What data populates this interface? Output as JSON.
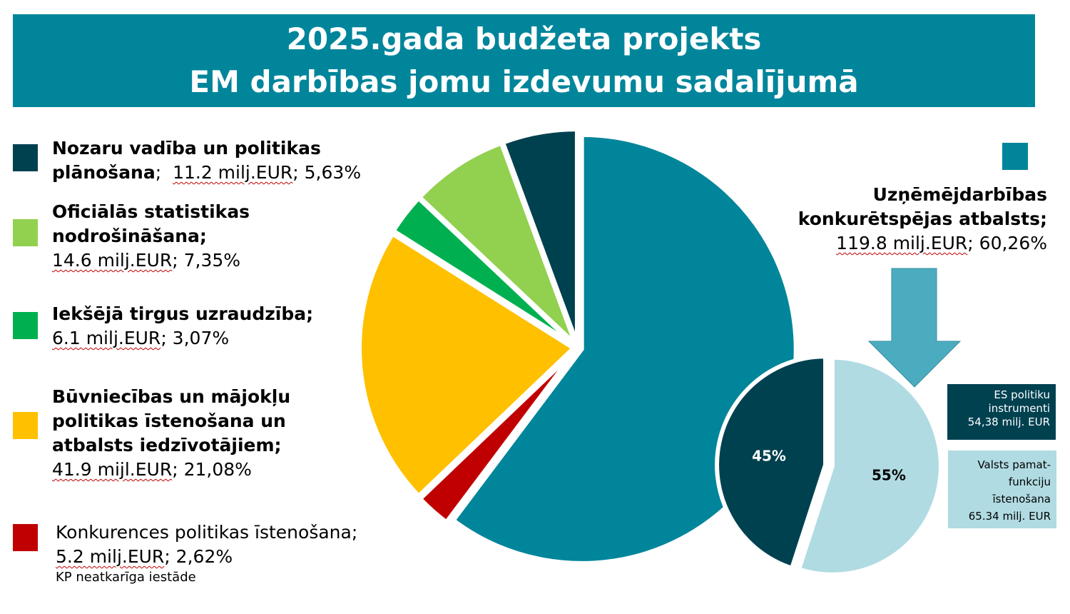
{
  "title": {
    "line1": "2025.gada budžeta projekts",
    "line2": "EM darbības jomu izdevumu sadalījumā"
  },
  "colors": {
    "banner": "#00859b",
    "nozaru": "#004150",
    "statistika": "#92d050",
    "tirgus": "#00b050",
    "buvnieciba": "#ffc000",
    "konkurence": "#c00000",
    "uznemejdarbiba": "#00859b",
    "es_instrumenti": "#004150",
    "valsts_funkcijas": "#b0dbe2",
    "arrow": "#4bacc0"
  },
  "legend": {
    "nozaru": {
      "title_a": "Nozaru vadība un politikas",
      "title_b": "plānošana",
      "sep": ";  ",
      "amount": "11.2 milj.EUR",
      "pct": "; 5,63%"
    },
    "statistika": {
      "title_a": "Oficiālās statistikas",
      "title_b": "nodrošināšana;",
      "amount": "14.6 milj.EUR",
      "pct": "; 7,35%"
    },
    "tirgus": {
      "title_a": "Iekšējā tirgus uzraudzība;",
      "amount": "6.1 milj.EUR",
      "pct": "; 3,07%"
    },
    "buvnieciba": {
      "title_a": "Būvniecības un mājokļu",
      "title_b": "politikas īstenošana un",
      "title_c": "atbalsts iedzīvotājiem;",
      "amount": "41.9 mijl.EUR",
      "pct": "; 21,08%"
    },
    "konkurence": {
      "title_a": "Konkurences politikas īstenošana;",
      "amount": "5.2 milj.EUR",
      "pct": "; 2,62%",
      "note": "KP neatkarīga iestāde"
    }
  },
  "business": {
    "title_a": "Uzņēmējdarbības",
    "title_b": "konkurētspējas atbalsts;",
    "amount": "119.8 milj.EUR",
    "pct": "; 60,26%"
  },
  "boxes": {
    "es": {
      "line1": "ES politiku",
      "line2": "instrumenti",
      "line3": "54,38 milj. EUR"
    },
    "valsts": {
      "line1": "Valsts pamat-",
      "line2": "funkciju",
      "line3": "īstenošana",
      "line4": "65.34 milj. EUR"
    }
  },
  "chart_data": [
    {
      "type": "pie",
      "slices": [
        {
          "name": "Uzņēmējdarbības konkurētspējas atbalsts",
          "value": 60.26,
          "color": "#00859b"
        },
        {
          "name": "Konkurences politikas īstenošana",
          "value": 2.62,
          "color": "#c00000"
        },
        {
          "name": "Būvniecības un mājokļu politikas īstenošana un atbalsts iedzīvotājiem",
          "value": 21.08,
          "color": "#ffc000"
        },
        {
          "name": "Iekšējā tirgus uzraudzība",
          "value": 3.07,
          "color": "#00b050"
        },
        {
          "name": "Oficiālās statistikas nodrošināšana",
          "value": 7.35,
          "color": "#92d050"
        },
        {
          "name": "Nozaru vadība un politikas plānošana",
          "value": 5.63,
          "color": "#004150"
        }
      ]
    },
    {
      "type": "pie",
      "slices": [
        {
          "name": "Valsts pamatfunkciju īstenošana",
          "value": 55,
          "label": "55%",
          "color": "#b0dbe2"
        },
        {
          "name": "ES politiku instrumenti",
          "value": 45,
          "label": "45%",
          "color": "#004150"
        }
      ]
    }
  ]
}
